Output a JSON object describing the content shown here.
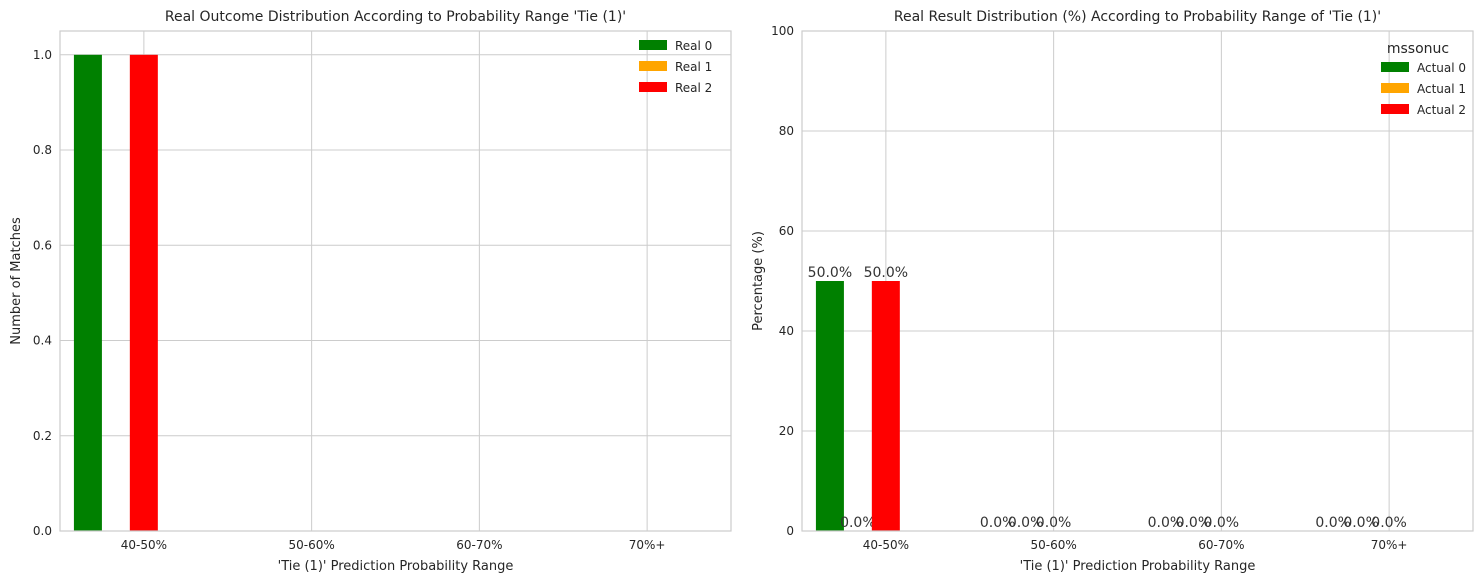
{
  "chart_data": [
    {
      "type": "bar",
      "title": "Real Outcome Distribution According to Probability Range 'Tie (1)'",
      "xlabel": "'Tie (1)' Prediction Probability Range",
      "ylabel": "Number of Matches",
      "categories": [
        "40-50%",
        "50-60%",
        "60-70%",
        "70%+"
      ],
      "ylim": [
        0,
        1.05
      ],
      "yticks": [
        "0.0",
        "0.2",
        "0.4",
        "0.6",
        "0.8",
        "1.0"
      ],
      "grid": true,
      "legend_position": "top-right",
      "series": [
        {
          "name": "Real 0",
          "color": "#008000",
          "values": [
            1,
            0,
            0,
            0
          ]
        },
        {
          "name": "Real 1",
          "color": "#ffa500",
          "values": [
            0,
            0,
            0,
            0
          ]
        },
        {
          "name": "Real 2",
          "color": "#ff0000",
          "values": [
            1,
            0,
            0,
            0
          ]
        }
      ]
    },
    {
      "type": "bar",
      "title": "Real Result Distribution (%) According to Probability Range of 'Tie (1)'",
      "xlabel": "'Tie (1)' Prediction Probability Range",
      "ylabel": "Percentage (%)",
      "categories": [
        "40-50%",
        "50-60%",
        "60-70%",
        "70%+"
      ],
      "ylim": [
        0,
        100
      ],
      "yticks": [
        "0",
        "20",
        "40",
        "60",
        "80",
        "100"
      ],
      "grid": true,
      "legend_title": "mssonuc",
      "legend_position": "top-right",
      "series": [
        {
          "name": "Actual 0",
          "color": "#008000",
          "values": [
            50,
            0,
            0,
            0
          ],
          "labels": [
            "50.0%",
            "0.0%",
            "0.0%",
            "0.0%"
          ]
        },
        {
          "name": "Actual 1",
          "color": "#ffa500",
          "values": [
            0,
            0,
            0,
            0
          ],
          "labels": [
            "0.0%",
            "0.0%",
            "0.0%",
            "0.0%"
          ]
        },
        {
          "name": "Actual 2",
          "color": "#ff0000",
          "values": [
            50,
            0,
            0,
            0
          ],
          "labels": [
            "50.0%",
            "0.0%",
            "0.0%",
            "0.0%"
          ]
        }
      ]
    }
  ]
}
